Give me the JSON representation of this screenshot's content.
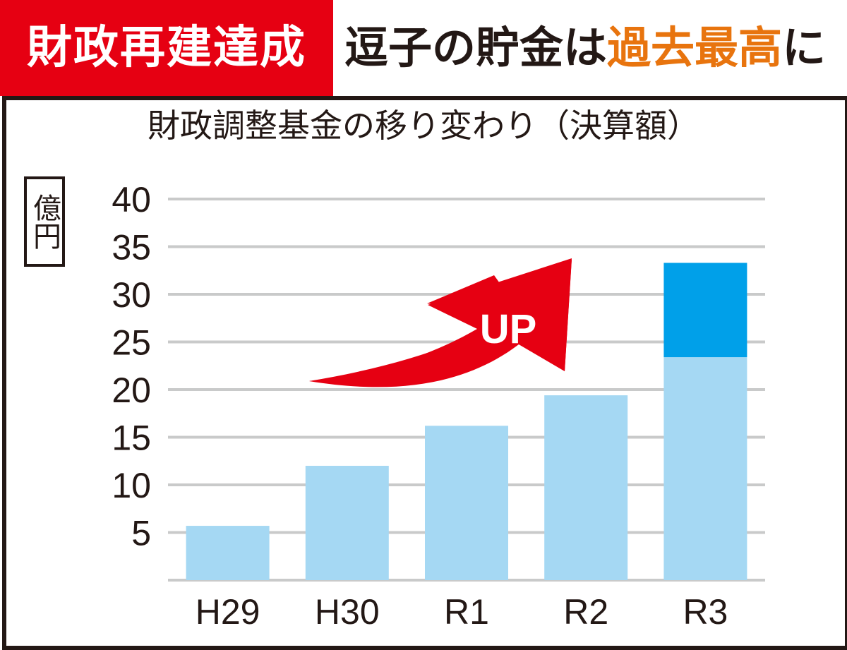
{
  "header": {
    "label": "財政再建達成",
    "headline_pre": "逗子の貯金は",
    "headline_highlight": "過去最高",
    "headline_post": "に"
  },
  "colors": {
    "header_red": "#e60012",
    "highlight_orange": "#e8740e",
    "bar_light": "#a5d8f3",
    "bar_dark": "#00a0e9",
    "arrow_red": "#e60012",
    "grid": "#c9caca",
    "frame": "#231815"
  },
  "chart_data": {
    "type": "bar",
    "title": "財政調整基金の移り変わり（決算額）",
    "unit": "億円",
    "categories": [
      "H29",
      "H30",
      "R1",
      "R2",
      "R3"
    ],
    "series": [
      {
        "values": [
          5.7,
          12.0,
          16.2,
          19.4,
          23.4
        ]
      },
      {
        "values": [
          0,
          0,
          0,
          0,
          9.9
        ]
      }
    ],
    "yticks": [
      "5",
      "10",
      "15",
      "20",
      "25",
      "30",
      "35",
      "40"
    ],
    "ylim": [
      0,
      40
    ],
    "grid": true,
    "annotation": "UP"
  }
}
